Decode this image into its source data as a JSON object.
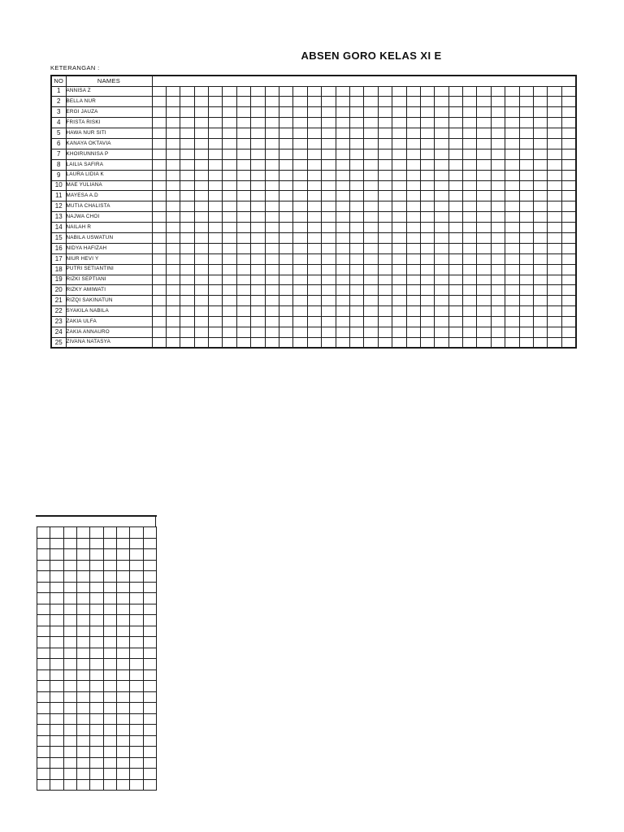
{
  "page": {
    "title": "ABSEN GORO KELAS XI E",
    "note_label": "KETERANGAN :"
  },
  "attendance_table": {
    "headers": {
      "no": "NO",
      "names": "NAMES"
    },
    "grid_columns": 30,
    "students": [
      {
        "no": "1",
        "name": "ANNISA Z"
      },
      {
        "no": "2",
        "name": "BELLA NUR"
      },
      {
        "no": "3",
        "name": "ERGI JAUZA"
      },
      {
        "no": "4",
        "name": "FRISTA RISKI"
      },
      {
        "no": "5",
        "name": "HAWA NUR SITI"
      },
      {
        "no": "6",
        "name": "KANAYA OKTAVIA"
      },
      {
        "no": "7",
        "name": "KHOIRUNNISA P"
      },
      {
        "no": "8",
        "name": "LAILIA SAFIRA"
      },
      {
        "no": "9",
        "name": "LAURA LIDIA K"
      },
      {
        "no": "10",
        "name": "MAE YULIANA"
      },
      {
        "no": "11",
        "name": "MAYESA A.D"
      },
      {
        "no": "12",
        "name": "MUTIA CHALISTA"
      },
      {
        "no": "13",
        "name": "NAJWA CHOI"
      },
      {
        "no": "14",
        "name": "NAILAH R"
      },
      {
        "no": "15",
        "name": "NABILA USWATUN"
      },
      {
        "no": "16",
        "name": "NIDYA HAFIZAH"
      },
      {
        "no": "17",
        "name": "NIUR HEVI Y"
      },
      {
        "no": "18",
        "name": "PUTRI SETIANTINI"
      },
      {
        "no": "19",
        "name": "RIZKI SEPTIANI"
      },
      {
        "no": "20",
        "name": "RIZKY AMIWATI"
      },
      {
        "no": "21",
        "name": "RIZQI SAKINATUN"
      },
      {
        "no": "22",
        "name": "SYAKILA NABILA"
      },
      {
        "no": "23",
        "name": "ZAKIA ULFA"
      },
      {
        "no": "24",
        "name": "ZAKIA ANNAURO"
      },
      {
        "no": "25",
        "name": "ZIVANA NATASYA"
      }
    ]
  },
  "secondary_grid": {
    "columns": 9,
    "rows": 24
  },
  "colors": {
    "line": "#1b1b1b",
    "background": "#ffffff"
  }
}
